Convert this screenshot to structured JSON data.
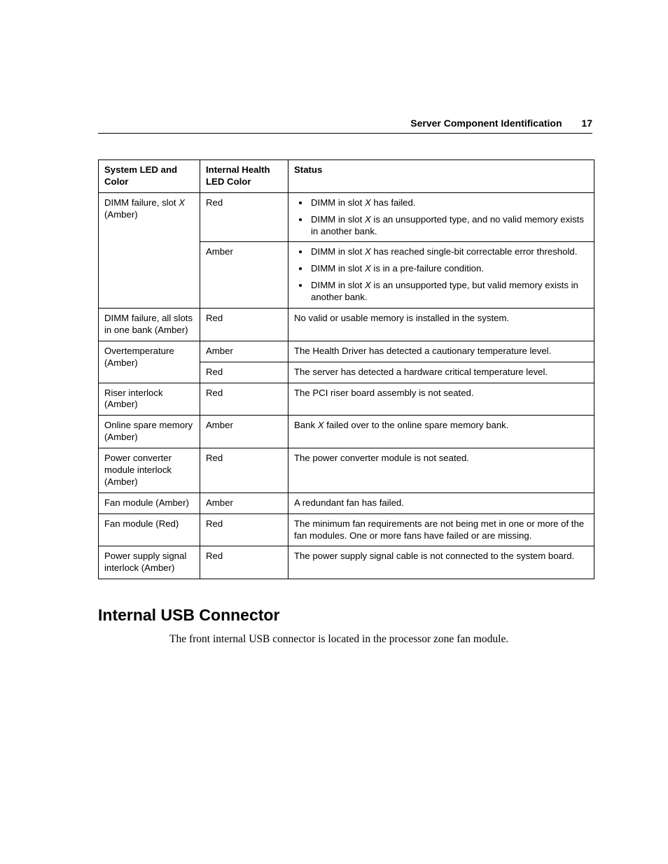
{
  "header": {
    "title": "Server Component Identification",
    "page_number": "17"
  },
  "table": {
    "columns": [
      "System LED and Color",
      "Internal Health LED Color",
      "Status"
    ],
    "rows": [
      {
        "c1": {
          "pre": "DIMM failure, slot ",
          "ital": "X",
          "post": " (Amber)"
        },
        "c2": "Red",
        "c3_list": [
          {
            "pre": "DIMM in slot ",
            "ital": "X",
            "post": " has failed."
          },
          {
            "pre": "DIMM in slot ",
            "ital": "X",
            "post": " is an unsupported type, and no valid memory exists in another bank."
          }
        ],
        "rowspan_c1": 2
      },
      {
        "c2": "Amber",
        "c3_list": [
          {
            "pre": "DIMM in slot ",
            "ital": "X",
            "post": " has reached single-bit correctable error threshold."
          },
          {
            "pre": "DIMM in slot ",
            "ital": "X",
            "post": " is in a pre-failure condition."
          },
          {
            "pre": "DIMM in slot ",
            "ital": "X",
            "post": " is an unsupported type, but valid memory exists in another bank."
          }
        ]
      },
      {
        "c1_plain": "DIMM failure, all slots in one bank (Amber)",
        "c2": "Red",
        "c3_plain": "No valid or usable memory is installed in the system."
      },
      {
        "c1_plain": "Overtemperature (Amber)",
        "c2": "Amber",
        "c3_plain": "The Health Driver has detected a cautionary temperature level.",
        "rowspan_c1": 2
      },
      {
        "c2": "Red",
        "c3_plain": "The server has detected a hardware critical temperature level."
      },
      {
        "c1_plain": "Riser interlock (Amber)",
        "c2": "Red",
        "c3_plain": "The PCI riser board assembly is not seated."
      },
      {
        "c1_plain": "Online spare memory (Amber)",
        "c2": "Amber",
        "c3_mixed": {
          "pre": "Bank ",
          "ital": "X",
          "post": " failed over to the online spare memory bank."
        }
      },
      {
        "c1_plain": "Power converter module interlock (Amber)",
        "c2": "Red",
        "c3_plain": "The power converter module is not seated."
      },
      {
        "c1_plain": "Fan module (Amber)",
        "c2": "Amber",
        "c3_plain": "A redundant fan has failed."
      },
      {
        "c1_plain": "Fan module (Red)",
        "c2": "Red",
        "c3_plain": "The minimum fan requirements are not being met in one or more of the fan modules. One or more fans have failed or are missing."
      },
      {
        "c1_plain": "Power supply signal interlock (Amber)",
        "c2": "Red",
        "c3_plain": "The power supply signal cable is not connected to the system board."
      }
    ]
  },
  "section": {
    "heading": "Internal USB Connector",
    "body": "The front internal USB connector is located in the processor zone fan module."
  }
}
